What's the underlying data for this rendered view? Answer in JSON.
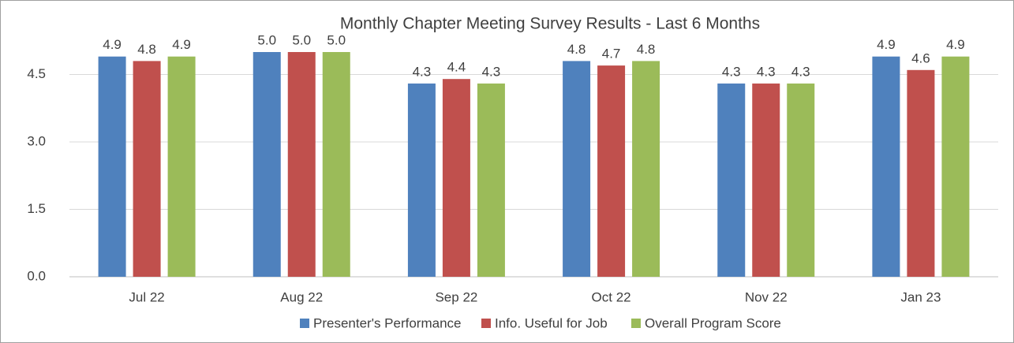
{
  "chart_data": {
    "type": "bar",
    "title": "Monthly Chapter Meeting Survey Results - Last 6 Months",
    "categories": [
      "Jul 22",
      "Aug 22",
      "Sep 22",
      "Oct 22",
      "Nov 22",
      "Jan 23"
    ],
    "series": [
      {
        "name": "Presenter's Performance",
        "color": "#4f81bd",
        "values": [
          4.9,
          5.0,
          4.3,
          4.8,
          4.3,
          4.9
        ],
        "value_labels": [
          "4.9",
          "5.0",
          "4.3",
          "4.8",
          "4.3",
          "4.9"
        ]
      },
      {
        "name": "Info. Useful for Job",
        "color": "#c0504d",
        "values": [
          4.8,
          5.0,
          4.4,
          4.7,
          4.3,
          4.6
        ],
        "value_labels": [
          "4.8",
          "5.0",
          "4.4",
          "4.7",
          "4.3",
          "4.6"
        ]
      },
      {
        "name": "Overall Program Score",
        "color": "#9bbb59",
        "values": [
          4.9,
          5.0,
          4.3,
          4.8,
          4.3,
          4.9
        ],
        "value_labels": [
          "4.9",
          "5.0",
          "4.3",
          "4.8",
          "4.3",
          "4.9"
        ]
      }
    ],
    "ylim": [
      0,
      6
    ],
    "yticks": [
      {
        "value": 0,
        "label": "0.0"
      },
      1.5,
      {
        "value": 3,
        "label": "3.0"
      },
      4.5
    ],
    "grid": true,
    "legend": "bottom"
  }
}
